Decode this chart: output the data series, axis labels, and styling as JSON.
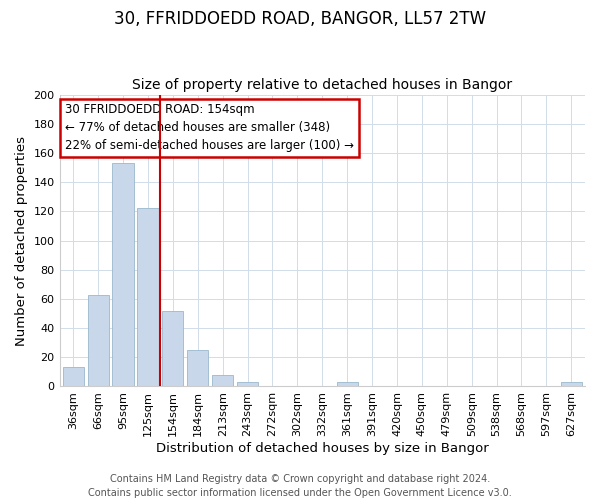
{
  "title": "30, FFRIDDOEDD ROAD, BANGOR, LL57 2TW",
  "subtitle": "Size of property relative to detached houses in Bangor",
  "xlabel": "Distribution of detached houses by size in Bangor",
  "ylabel": "Number of detached properties",
  "bar_labels": [
    "36sqm",
    "66sqm",
    "95sqm",
    "125sqm",
    "154sqm",
    "184sqm",
    "213sqm",
    "243sqm",
    "272sqm",
    "302sqm",
    "332sqm",
    "361sqm",
    "391sqm",
    "420sqm",
    "450sqm",
    "479sqm",
    "509sqm",
    "538sqm",
    "568sqm",
    "597sqm",
    "627sqm"
  ],
  "bar_values": [
    13,
    63,
    153,
    122,
    52,
    25,
    8,
    3,
    0,
    0,
    0,
    3,
    0,
    0,
    0,
    0,
    0,
    0,
    0,
    0,
    3
  ],
  "bar_color": "#c8d8ea",
  "bar_edge_color": "#9ab8cc",
  "red_line_index": 3.5,
  "ylim": [
    0,
    200
  ],
  "yticks": [
    0,
    20,
    40,
    60,
    80,
    100,
    120,
    140,
    160,
    180,
    200
  ],
  "annotation_title": "30 FFRIDDOEDD ROAD: 154sqm",
  "annotation_line1": "← 77% of detached houses are smaller (348)",
  "annotation_line2": "22% of semi-detached houses are larger (100) →",
  "annotation_box_color": "#ffffff",
  "annotation_box_edge": "#cc0000",
  "footer_line1": "Contains HM Land Registry data © Crown copyright and database right 2024.",
  "footer_line2": "Contains public sector information licensed under the Open Government Licence v3.0.",
  "background_color": "#ffffff",
  "grid_color": "#d0dce8",
  "title_fontsize": 12,
  "subtitle_fontsize": 10,
  "axis_label_fontsize": 9.5,
  "tick_fontsize": 8,
  "footer_fontsize": 7,
  "annotation_fontsize": 8.5
}
